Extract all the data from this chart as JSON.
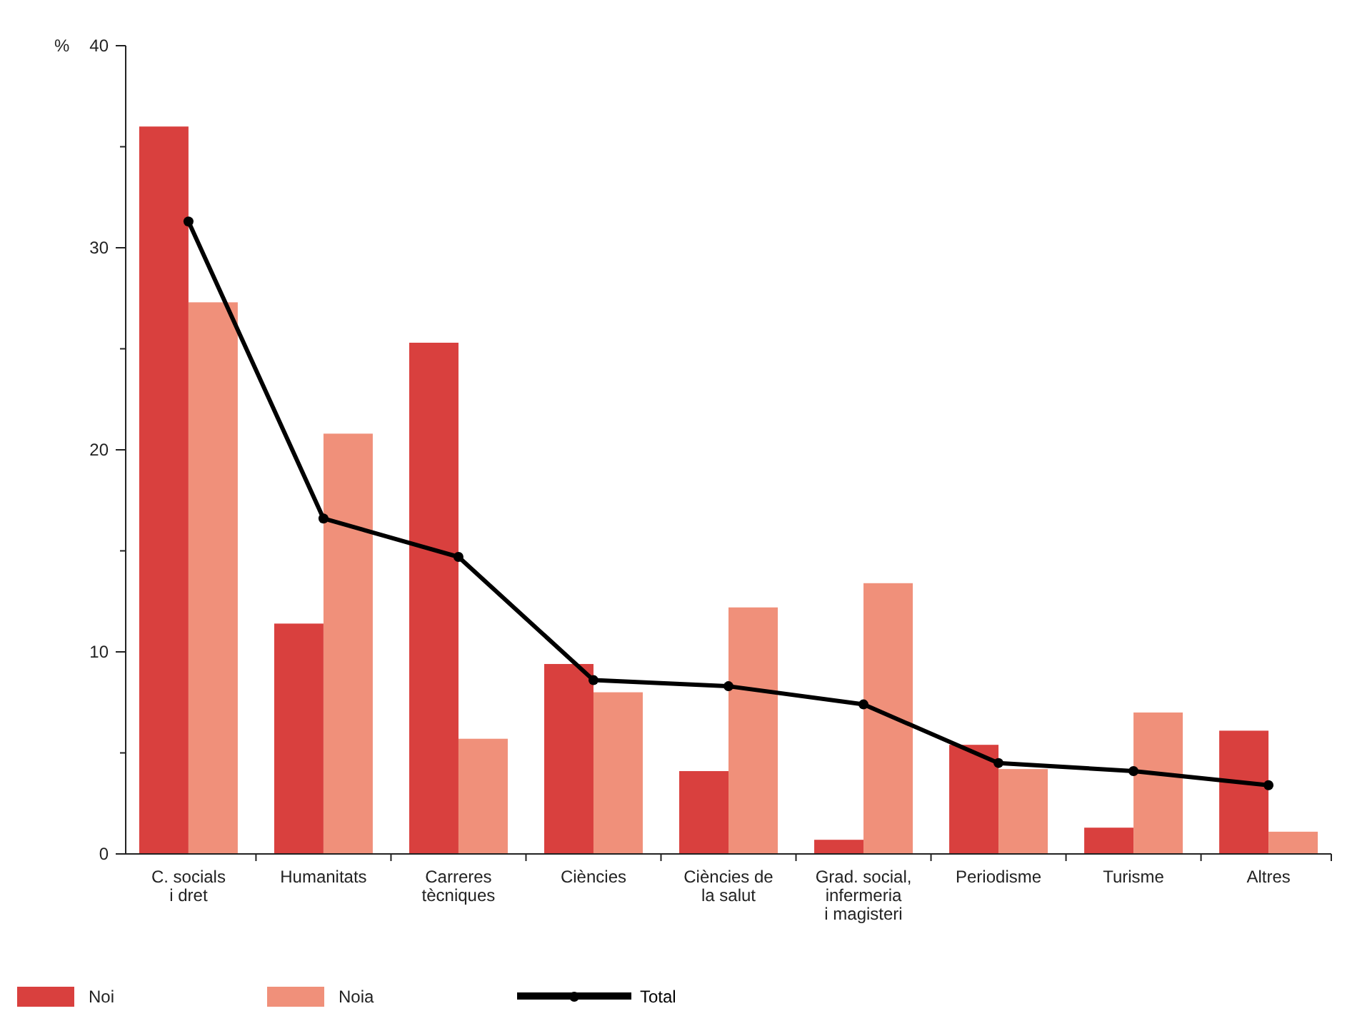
{
  "chart_data": {
    "type": "bar",
    "ylabel": "%",
    "categories": [
      "C. socials\ni dret",
      "Humanitats",
      "Carreres\ntècniques",
      "Ciències",
      "Ciències de\nla salut",
      "Grad. social,\ninfermeria\ni magisteri",
      "Periodisme",
      "Turisme",
      "Altres"
    ],
    "series": [
      {
        "name": "Noi",
        "color": "#d9403e",
        "values": [
          36,
          11.4,
          25.3,
          9.4,
          4.1,
          0.7,
          5.4,
          1.3,
          6.1
        ]
      },
      {
        "name": "Noia",
        "color": "#f0907a",
        "values": [
          27.3,
          20.8,
          5.7,
          8.0,
          12.2,
          13.4,
          4.2,
          7.0,
          1.1
        ]
      },
      {
        "name": "Total",
        "type": "line",
        "color": "#000000",
        "values": [
          31.3,
          16.6,
          14.7,
          8.6,
          8.3,
          7.4,
          4.5,
          4.1,
          3.4
        ]
      }
    ],
    "ylim": [
      0,
      40
    ],
    "yticks": [
      0,
      {
        "value": 5,
        "label": null
      },
      10,
      {
        "value": 15,
        "label": null
      },
      20,
      {
        "value": 25,
        "label": null
      },
      30,
      {
        "value": 35,
        "label": null
      },
      40
    ],
    "marker": "circle",
    "legend": "bottom left",
    "grid": false
  }
}
